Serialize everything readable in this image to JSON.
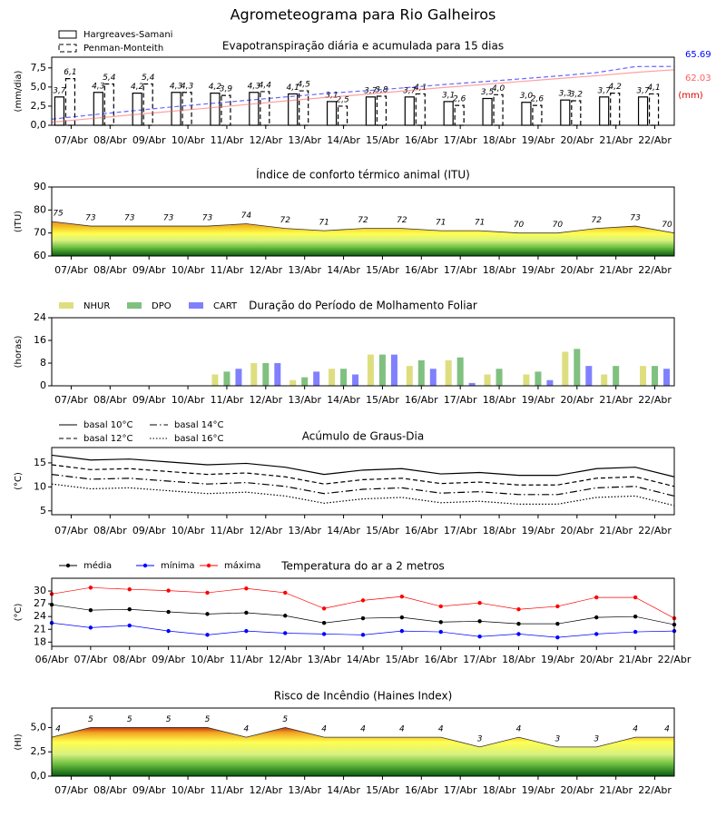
{
  "title": "Agrometeograma para Rio Galheiros",
  "chart_data": [
    {
      "type": "bar",
      "title": "Evapotranspiração diária e acumulada para 15 dias",
      "ylabel": "(mm/dia)",
      "y2label": "(mm)",
      "categories": [
        "07/Abr",
        "08/Abr",
        "09/Abr",
        "10/Abr",
        "11/Abr",
        "12/Abr",
        "13/Abr",
        "14/Abr",
        "15/Abr",
        "16/Abr",
        "17/Abr",
        "18/Abr",
        "19/Abr",
        "20/Abr",
        "21/Abr",
        "22/Abr"
      ],
      "xlim": [
        0,
        16
      ],
      "ylim": [
        0,
        8.9
      ],
      "yticks": [
        {
          "value": 0,
          "label": "0,0"
        },
        {
          "value": 2.5,
          "label": "2,5"
        },
        {
          "value": 5,
          "label": "5,0"
        },
        {
          "value": 7.5,
          "label": "7,5"
        }
      ],
      "y2lim": [
        0,
        76
      ],
      "series": [
        {
          "name": "Hargreaves-Samani",
          "color": "#000000",
          "fill": "#ffffff",
          "dash": "solid",
          "values": [
            3.7,
            4.3,
            4.2,
            4.3,
            4.2,
            4.3,
            4.1,
            3.1,
            3.7,
            3.7,
            3.1,
            3.5,
            3.0,
            3.3,
            3.7,
            3.7
          ],
          "value_labels": [
            "3,7",
            "4,3",
            "4,2",
            "4,3",
            "4,2",
            "4,3",
            "4,1",
            "3,1",
            "3,7",
            "3,7",
            "3,1",
            "3,5",
            "3,0",
            "3,3",
            "3,7",
            "3,7"
          ]
        },
        {
          "name": "Penman-Monteith",
          "color": "#000000",
          "fill": "#ffffff",
          "dash": "dashed",
          "values": [
            6.1,
            5.4,
            5.4,
            4.3,
            3.9,
            4.4,
            4.5,
            2.5,
            3.8,
            4.1,
            2.6,
            4.0,
            2.6,
            3.2,
            4.2,
            4.1
          ],
          "value_labels": [
            "6,1",
            "5,4",
            "5,4",
            "4,3",
            "3,9",
            "4,4",
            "4,5",
            "2,5",
            "3,8",
            "4,1",
            "2,6",
            "4,0",
            "2,6",
            "3,2",
            "4,2",
            "4,1"
          ]
        },
        {
          "color": "#ff6060",
          "axis": "y2",
          "dash": "solid",
          "x": [
            0,
            1,
            2,
            3,
            4,
            5,
            6,
            7,
            8,
            9,
            10,
            11,
            12,
            13,
            14,
            15,
            16
          ],
          "values": [
            3.4,
            7.4,
            11.4,
            15.3,
            19.2,
            23.1,
            27.1,
            30.9,
            34.3,
            38.1,
            41.9,
            45.2,
            48.7,
            52.1,
            55.3,
            59.0,
            62.03
          ]
        },
        {
          "color": "#0000ff",
          "axis": "y2",
          "dash": "dashed",
          "x": [
            0,
            1,
            2,
            3,
            4,
            5,
            6,
            7,
            8,
            9,
            10,
            11,
            12,
            13,
            14,
            15,
            16
          ],
          "values": [
            6.8,
            11.5,
            15.8,
            20.1,
            24.0,
            27.8,
            31.6,
            35.3,
            38.4,
            41.6,
            45.2,
            48.4,
            51.6,
            55.0,
            58.8,
            65.5,
            65.69
          ]
        }
      ]
    },
    {
      "type": "area",
      "title": "Índice de conforto térmico animal (ITU)",
      "ylabel": "(ITU)",
      "x": [
        0,
        1,
        2,
        3,
        4,
        5,
        6,
        7,
        8,
        9,
        10,
        11,
        12,
        13,
        14,
        15,
        16
      ],
      "xlim": [
        0,
        16
      ],
      "xticks": [
        {
          "value": 0.5,
          "label": "07/Abr"
        },
        {
          "value": 1.5,
          "label": "08/Abr"
        },
        {
          "value": 2.5,
          "label": "09/Abr"
        },
        {
          "value": 3.5,
          "label": "10/Abr"
        },
        {
          "value": 4.5,
          "label": "11/Abr"
        },
        {
          "value": 5.5,
          "label": "12/Abr"
        },
        {
          "value": 6.5,
          "label": "13/Abr"
        },
        {
          "value": 7.5,
          "label": "14/Abr"
        },
        {
          "value": 8.5,
          "label": "15/Abr"
        },
        {
          "value": 9.5,
          "label": "16/Abr"
        },
        {
          "value": 10.5,
          "label": "17/Abr"
        },
        {
          "value": 11.5,
          "label": "18/Abr"
        },
        {
          "value": 12.5,
          "label": "19/Abr"
        },
        {
          "value": 13.5,
          "label": "20/Abr"
        },
        {
          "value": 14.5,
          "label": "21/Abr"
        },
        {
          "value": 15.5,
          "label": "22/Abr"
        }
      ],
      "values": [
        75,
        73,
        73,
        73,
        73,
        74,
        72,
        71,
        72,
        72,
        71,
        71,
        70,
        70,
        72,
        73,
        70
      ],
      "color": "#333333",
      "ylim": [
        60,
        90
      ],
      "yticks": [
        60,
        70,
        80,
        90
      ]
    },
    {
      "type": "bar",
      "title": "Duração do Período de Molhamento Foliar",
      "ylabel": "(horas)",
      "categories": [
        "07/Abr",
        "08/Abr",
        "09/Abr",
        "10/Abr",
        "11/Abr",
        "12/Abr",
        "13/Abr",
        "14/Abr",
        "15/Abr",
        "16/Abr",
        "17/Abr",
        "18/Abr",
        "19/Abr",
        "20/Abr",
        "21/Abr",
        "22/Abr"
      ],
      "ylim": [
        0,
        24
      ],
      "yticks": [
        0,
        8,
        16,
        24
      ],
      "series": [
        {
          "name": "NHUR",
          "color": "#dede80",
          "values": [
            0,
            0,
            0,
            0,
            4,
            8,
            2,
            6,
            11,
            7,
            9,
            4,
            4,
            12,
            4,
            7
          ]
        },
        {
          "name": "DPO",
          "color": "#80c080",
          "values": [
            0,
            0,
            0,
            0,
            5,
            8,
            3,
            6,
            11,
            9,
            10,
            6,
            5,
            13,
            7,
            7
          ]
        },
        {
          "name": "CART",
          "color": "#8080ff",
          "values": [
            0,
            0,
            0,
            0,
            6,
            8,
            5,
            4,
            11,
            6,
            1,
            0,
            2,
            7,
            0,
            6
          ]
        }
      ]
    },
    {
      "type": "line",
      "title": "Acúmulo de Graus-Dia",
      "ylabel": "(°C)",
      "x": [
        0,
        1,
        2,
        3,
        4,
        5,
        6,
        7,
        8,
        9,
        10,
        11,
        12,
        13,
        14,
        15,
        16
      ],
      "xlim": [
        0,
        16
      ],
      "xticks": [
        {
          "value": 0.5,
          "label": "07/Abr"
        },
        {
          "value": 1.5,
          "label": "08/Abr"
        },
        {
          "value": 2.5,
          "label": "09/Abr"
        },
        {
          "value": 3.5,
          "label": "10/Abr"
        },
        {
          "value": 4.5,
          "label": "11/Abr"
        },
        {
          "value": 5.5,
          "label": "12/Abr"
        },
        {
          "value": 6.5,
          "label": "13/Abr"
        },
        {
          "value": 7.5,
          "label": "14/Abr"
        },
        {
          "value": 8.5,
          "label": "15/Abr"
        },
        {
          "value": 9.5,
          "label": "16/Abr"
        },
        {
          "value": 10.5,
          "label": "17/Abr"
        },
        {
          "value": 11.5,
          "label": "18/Abr"
        },
        {
          "value": 12.5,
          "label": "19/Abr"
        },
        {
          "value": 13.5,
          "label": "20/Abr"
        },
        {
          "value": 14.5,
          "label": "21/Abr"
        },
        {
          "value": 15.5,
          "label": "22/Abr"
        }
      ],
      "ylim": [
        4.2,
        18.2
      ],
      "yticks": [
        5,
        10,
        15
      ],
      "series": [
        {
          "name": "basal 10°C",
          "color": "#000000",
          "dash": "solid",
          "values": [
            16.6,
            15.6,
            15.8,
            15.2,
            14.6,
            14.9,
            14.1,
            12.6,
            13.5,
            13.8,
            12.7,
            13.0,
            12.4,
            12.4,
            13.8,
            14.1,
            12.1
          ]
        },
        {
          "name": "basal 12°C",
          "color": "#000000",
          "dash": "dashed",
          "values": [
            14.6,
            13.6,
            13.8,
            13.2,
            12.6,
            12.9,
            12.1,
            10.6,
            11.5,
            11.8,
            10.7,
            11.0,
            10.4,
            10.4,
            11.8,
            12.1,
            10.1
          ]
        },
        {
          "name": "basal 14°C",
          "color": "#000000",
          "dash": "dashdot",
          "values": [
            12.6,
            11.6,
            11.8,
            11.2,
            10.6,
            10.9,
            10.1,
            8.6,
            9.5,
            9.8,
            8.7,
            9.0,
            8.4,
            8.4,
            9.8,
            10.1,
            8.1
          ]
        },
        {
          "name": "basal 16°C",
          "color": "#000000",
          "dash": "dotted",
          "values": [
            10.6,
            9.6,
            9.8,
            9.2,
            8.6,
            8.9,
            8.1,
            6.6,
            7.5,
            7.8,
            6.7,
            7.0,
            6.4,
            6.4,
            7.8,
            8.1,
            6.1
          ]
        }
      ]
    },
    {
      "type": "line",
      "title": "Temperatura do ar a 2 metros",
      "ylabel": "(°C)",
      "categories": [
        "06/Abr",
        "07/Abr",
        "08/Abr",
        "09/Abr",
        "10/Abr",
        "11/Abr",
        "12/Abr",
        "13/Abr",
        "14/Abr",
        "15/Abr",
        "16/Abr",
        "17/Abr",
        "18/Abr",
        "19/Abr",
        "20/Abr",
        "21/Abr",
        "22/Abr"
      ],
      "ylim": [
        17,
        33
      ],
      "yticks": [
        18,
        21,
        24,
        27,
        30
      ],
      "marker": true,
      "series": [
        {
          "name": "média",
          "color": "#000000",
          "dash": "solid",
          "values": [
            26.8,
            25.5,
            25.7,
            25.1,
            24.6,
            24.9,
            24.2,
            22.5,
            23.6,
            23.8,
            22.7,
            22.9,
            22.3,
            22.3,
            23.8,
            24.0,
            22.1
          ]
        },
        {
          "name": "mínima",
          "color": "#0000ff",
          "dash": "solid",
          "values": [
            22.5,
            21.4,
            21.9,
            20.6,
            19.7,
            20.6,
            20.1,
            19.9,
            19.7,
            20.6,
            20.4,
            19.3,
            19.9,
            19.1,
            19.9,
            20.4,
            20.6
          ]
        },
        {
          "name": "máxima",
          "color": "#ff0000",
          "dash": "solid",
          "values": [
            29.3,
            30.8,
            30.4,
            30.1,
            29.6,
            30.6,
            29.6,
            25.9,
            27.8,
            28.7,
            26.4,
            27.2,
            25.7,
            26.4,
            28.5,
            28.5,
            23.6
          ]
        }
      ]
    },
    {
      "type": "area",
      "title": "Risco de Incêndio (Haines Index)",
      "ylabel": "(HI)",
      "x": [
        0,
        1,
        2,
        3,
        4,
        5,
        6,
        7,
        8,
        9,
        10,
        11,
        12,
        13,
        14,
        15,
        16
      ],
      "xlim": [
        0,
        16
      ],
      "xticks": [
        {
          "value": 0.5,
          "label": "07/Abr"
        },
        {
          "value": 1.5,
          "label": "08/Abr"
        },
        {
          "value": 2.5,
          "label": "09/Abr"
        },
        {
          "value": 3.5,
          "label": "10/Abr"
        },
        {
          "value": 4.5,
          "label": "11/Abr"
        },
        {
          "value": 5.5,
          "label": "12/Abr"
        },
        {
          "value": 6.5,
          "label": "13/Abr"
        },
        {
          "value": 7.5,
          "label": "14/Abr"
        },
        {
          "value": 8.5,
          "label": "15/Abr"
        },
        {
          "value": 9.5,
          "label": "16/Abr"
        },
        {
          "value": 10.5,
          "label": "17/Abr"
        },
        {
          "value": 11.5,
          "label": "18/Abr"
        },
        {
          "value": 12.5,
          "label": "19/Abr"
        },
        {
          "value": 13.5,
          "label": "20/Abr"
        },
        {
          "value": 14.5,
          "label": "21/Abr"
        },
        {
          "value": 15.5,
          "label": "22/Abr"
        }
      ],
      "values": [
        4,
        5,
        5,
        5,
        5,
        4,
        5,
        4,
        4,
        4,
        4,
        3,
        4,
        3,
        3,
        4,
        4
      ],
      "color": "#333333",
      "ylim": [
        0,
        7
      ],
      "yticks": [
        {
          "value": 0,
          "label": "0,0"
        },
        {
          "value": 2.5,
          "label": "2,5"
        },
        {
          "value": 5,
          "label": "5,0"
        }
      ]
    }
  ]
}
